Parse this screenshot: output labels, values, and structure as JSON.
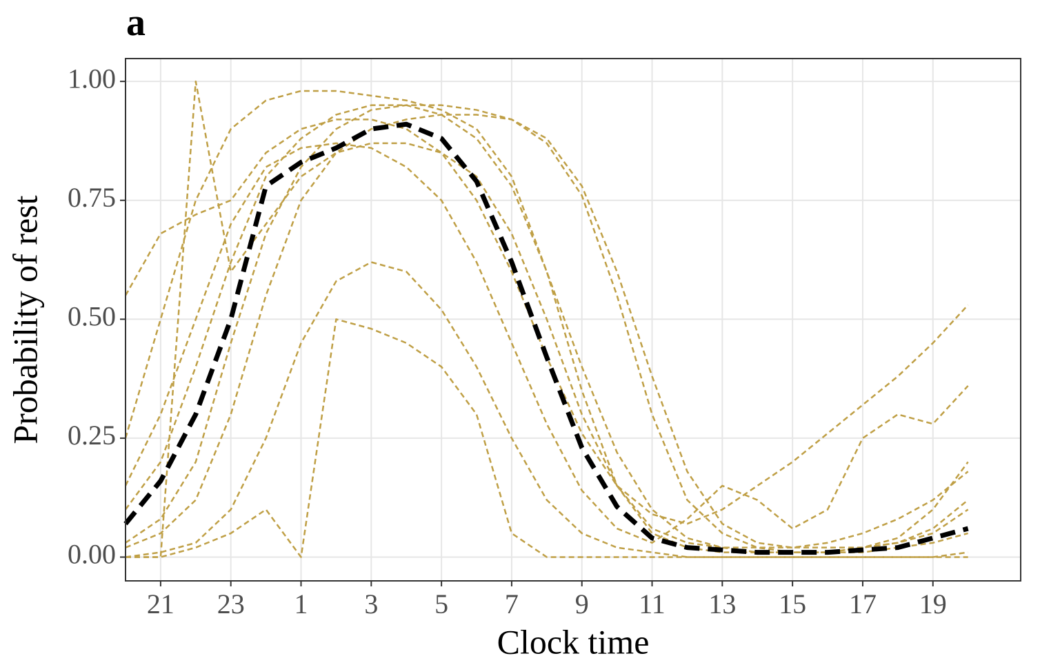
{
  "chart_data": {
    "type": "line",
    "panel_label": "a",
    "xlabel": "Clock time",
    "ylabel": "Probability of rest",
    "x": [
      20,
      21,
      22,
      23,
      24,
      25,
      26,
      27,
      28,
      29,
      30,
      31,
      32,
      33,
      34,
      35,
      36,
      37,
      38,
      39,
      40,
      41,
      42,
      43,
      44
    ],
    "xlim": [
      20,
      45.5
    ],
    "xticks": [
      21,
      23,
      {
        "value": 25,
        "label": "1"
      },
      {
        "value": 27,
        "label": "3"
      },
      {
        "value": 29,
        "label": "5"
      },
      {
        "value": 31,
        "label": "7"
      },
      {
        "value": 33,
        "label": "9"
      },
      {
        "value": 35,
        "label": "11"
      },
      {
        "value": 37,
        "label": "13"
      },
      {
        "value": 39,
        "label": "15"
      },
      {
        "value": 41,
        "label": "17"
      },
      {
        "value": 43,
        "label": "19"
      }
    ],
    "ylim": [
      -0.05,
      1.048
    ],
    "yticks": [
      {
        "value": 0,
        "label": "0.00"
      },
      {
        "value": 0.25,
        "label": "0.25"
      },
      {
        "value": 0.5,
        "label": "0.50"
      },
      {
        "value": 0.75,
        "label": "0.75"
      },
      {
        "value": 1,
        "label": "1.00"
      }
    ],
    "grid": true,
    "linestyle": "dashed",
    "series": [
      {
        "color": "#bf9f45",
        "values": [
          0.25,
          0.5,
          0.75,
          0.9,
          0.96,
          0.98,
          0.98,
          0.97,
          0.96,
          0.94,
          0.9,
          0.8,
          0.6,
          0.35,
          0.15,
          0.05,
          0.02,
          0.01,
          0.01,
          0.01,
          0.01,
          0.01,
          0.02,
          0.03,
          0.05
        ]
      },
      {
        "color": "#bf9f45",
        "values": [
          0.02,
          0.05,
          0.12,
          0.3,
          0.55,
          0.75,
          0.85,
          0.9,
          0.92,
          0.93,
          0.93,
          0.92,
          0.88,
          0.78,
          0.6,
          0.38,
          0.18,
          0.07,
          0.03,
          0.02,
          0.02,
          0.02,
          0.03,
          0.05,
          0.1
        ]
      },
      {
        "color": "#bf9f45",
        "values": [
          0,
          0.01,
          0.03,
          0.1,
          0.25,
          0.45,
          0.58,
          0.62,
          0.6,
          0.52,
          0.4,
          0.25,
          0.12,
          0.05,
          0.02,
          0.01,
          0,
          0,
          0,
          0,
          0,
          0,
          0,
          0,
          0.01
        ]
      },
      {
        "color": "#bf9f45",
        "values": [
          0.55,
          0.68,
          0.72,
          0.75,
          0.85,
          0.9,
          0.92,
          0.92,
          0.9,
          0.85,
          0.75,
          0.6,
          0.42,
          0.26,
          0.15,
          0.09,
          0.07,
          0.1,
          0.15,
          0.2,
          0.26,
          0.32,
          0.38,
          0.45,
          0.53
        ]
      },
      {
        "color": "#bf9f45",
        "values": [
          0.1,
          0.2,
          0.4,
          0.62,
          0.8,
          0.88,
          0.93,
          0.95,
          0.95,
          0.93,
          0.88,
          0.78,
          0.6,
          0.4,
          0.22,
          0.1,
          0.04,
          0.02,
          0.01,
          0.01,
          0.01,
          0.02,
          0.03,
          0.06,
          0.12
        ]
      },
      {
        "color": "#bf9f45",
        "values": [
          0.03,
          0.08,
          0.2,
          0.45,
          0.68,
          0.82,
          0.9,
          0.94,
          0.95,
          0.95,
          0.94,
          0.92,
          0.87,
          0.76,
          0.55,
          0.3,
          0.12,
          0.05,
          0.02,
          0.01,
          0.01,
          0.02,
          0.04,
          0.1,
          0.2
        ]
      },
      {
        "color": "#bf9f45",
        "values": [
          0,
          0,
          1,
          0.6,
          0.7,
          0.8,
          0.85,
          0.87,
          0.87,
          0.85,
          0.8,
          0.68,
          0.5,
          0.3,
          0.15,
          0.06,
          0.03,
          0.02,
          0.02,
          0.02,
          0.03,
          0.05,
          0.08,
          0.12,
          0.18
        ]
      },
      {
        "color": "#bf9f45",
        "values": [
          0.15,
          0.3,
          0.5,
          0.7,
          0.82,
          0.86,
          0.87,
          0.86,
          0.82,
          0.75,
          0.62,
          0.45,
          0.28,
          0.14,
          0.06,
          0.03,
          0.08,
          0.15,
          0.12,
          0.06,
          0.1,
          0.25,
          0.3,
          0.28,
          0.36
        ]
      },
      {
        "color": "#bf9f45",
        "values": [
          0,
          0,
          0.02,
          0.05,
          0.1,
          0,
          0.5,
          0.48,
          0.45,
          0.4,
          0.3,
          0.05,
          0,
          0,
          0,
          0,
          0,
          0,
          0,
          0,
          0,
          0,
          0,
          0,
          0
        ]
      },
      {
        "color": "#000000",
        "values": [
          0.07,
          0.16,
          0.3,
          0.5,
          0.78,
          0.83,
          0.86,
          0.9,
          0.91,
          0.88,
          0.79,
          0.62,
          0.42,
          0.23,
          0.106,
          0.04,
          0.02,
          0.015,
          0.01,
          0.01,
          0.01,
          0.015,
          0.02,
          0.04,
          0.06
        ]
      }
    ]
  }
}
